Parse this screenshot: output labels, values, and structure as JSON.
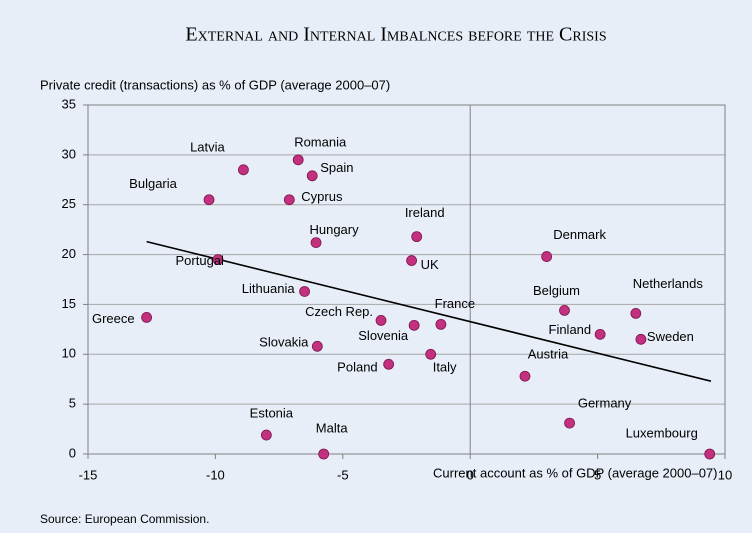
{
  "chart_data": {
    "type": "scatter",
    "title": "External and Internal Imbalnces before the Crisis",
    "y_label": "Private credit (transactions) as % of GDP (average 2000–07)",
    "x_label": "Current account as % of GDP (average 2000–07)",
    "source": "Source: European Commission.",
    "color": "#c2307e",
    "grid": true,
    "xlim": [
      -15,
      10
    ],
    "ylim": [
      0,
      35
    ],
    "xticks": [
      -15,
      -10,
      -5,
      0,
      5,
      10
    ],
    "yticks": [
      0,
      5,
      10,
      15,
      20,
      25,
      30,
      35
    ],
    "labels": [
      "Latvia",
      "Romania",
      "Spain",
      "Bulgaria",
      "Cyprus",
      "Hungary",
      "Ireland",
      "Portugal",
      "UK",
      "Denmark",
      "Lithuania",
      "Belgium",
      "Netherlands",
      "Greece",
      "Czech Rep.",
      "Slovenia",
      "France",
      "Finland",
      "Sweden",
      "Slovakia",
      "Italy",
      "Poland",
      "Austria",
      "Germany",
      "Estonia",
      "Malta",
      "Luxembourg"
    ],
    "x": [
      -8.9,
      -6.75,
      -6.2,
      -10.25,
      -7.1,
      -6.05,
      -2.1,
      -9.9,
      -2.3,
      3.0,
      -6.5,
      3.7,
      6.5,
      -12.7,
      -3.5,
      -2.2,
      -1.15,
      5.1,
      6.7,
      -6.0,
      -1.55,
      -3.2,
      2.15,
      3.9,
      -8.0,
      -5.75,
      9.4
    ],
    "y": [
      28.5,
      29.5,
      27.9,
      25.5,
      25.5,
      21.2,
      21.8,
      19.5,
      19.4,
      19.8,
      16.3,
      14.4,
      14.1,
      13.7,
      13.4,
      12.9,
      13.0,
      12.0,
      11.5,
      10.8,
      10.0,
      9.0,
      7.8,
      3.1,
      1.9,
      0,
      0
    ],
    "trendline": {
      "x": [
        -12.7,
        9.45
      ],
      "y": [
        21.3,
        7.3
      ]
    }
  }
}
